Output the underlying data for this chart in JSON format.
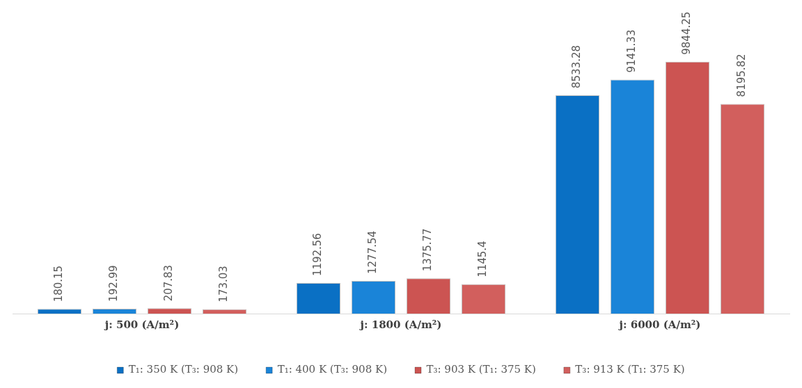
{
  "chart_data": {
    "type": "bar",
    "categories": [
      "j: 500 (A/m²)",
      "j: 1800 (A/m²)",
      "j: 6000 (A/m²)"
    ],
    "series": [
      {
        "name": "T₁: 350 K (T₃: 908 K)",
        "color": "#0a70c4",
        "values": [
          180.15,
          1192.56,
          8533.28
        ]
      },
      {
        "name": "T₁: 400 K (T₃: 908 K)",
        "color": "#1a84d8",
        "values": [
          192.99,
          1277.54,
          9141.33
        ]
      },
      {
        "name": "T₃: 903 K (T₁: 375 K)",
        "color": "#cc5452",
        "values": [
          207.83,
          1375.77,
          9844.25
        ]
      },
      {
        "name": "T₃: 913 K (T₁: 375 K)",
        "color": "#d25f5d",
        "values": [
          173.03,
          1145.4,
          8195.82
        ]
      }
    ],
    "data_labels": true,
    "legend": "bottom",
    "grid": false
  }
}
